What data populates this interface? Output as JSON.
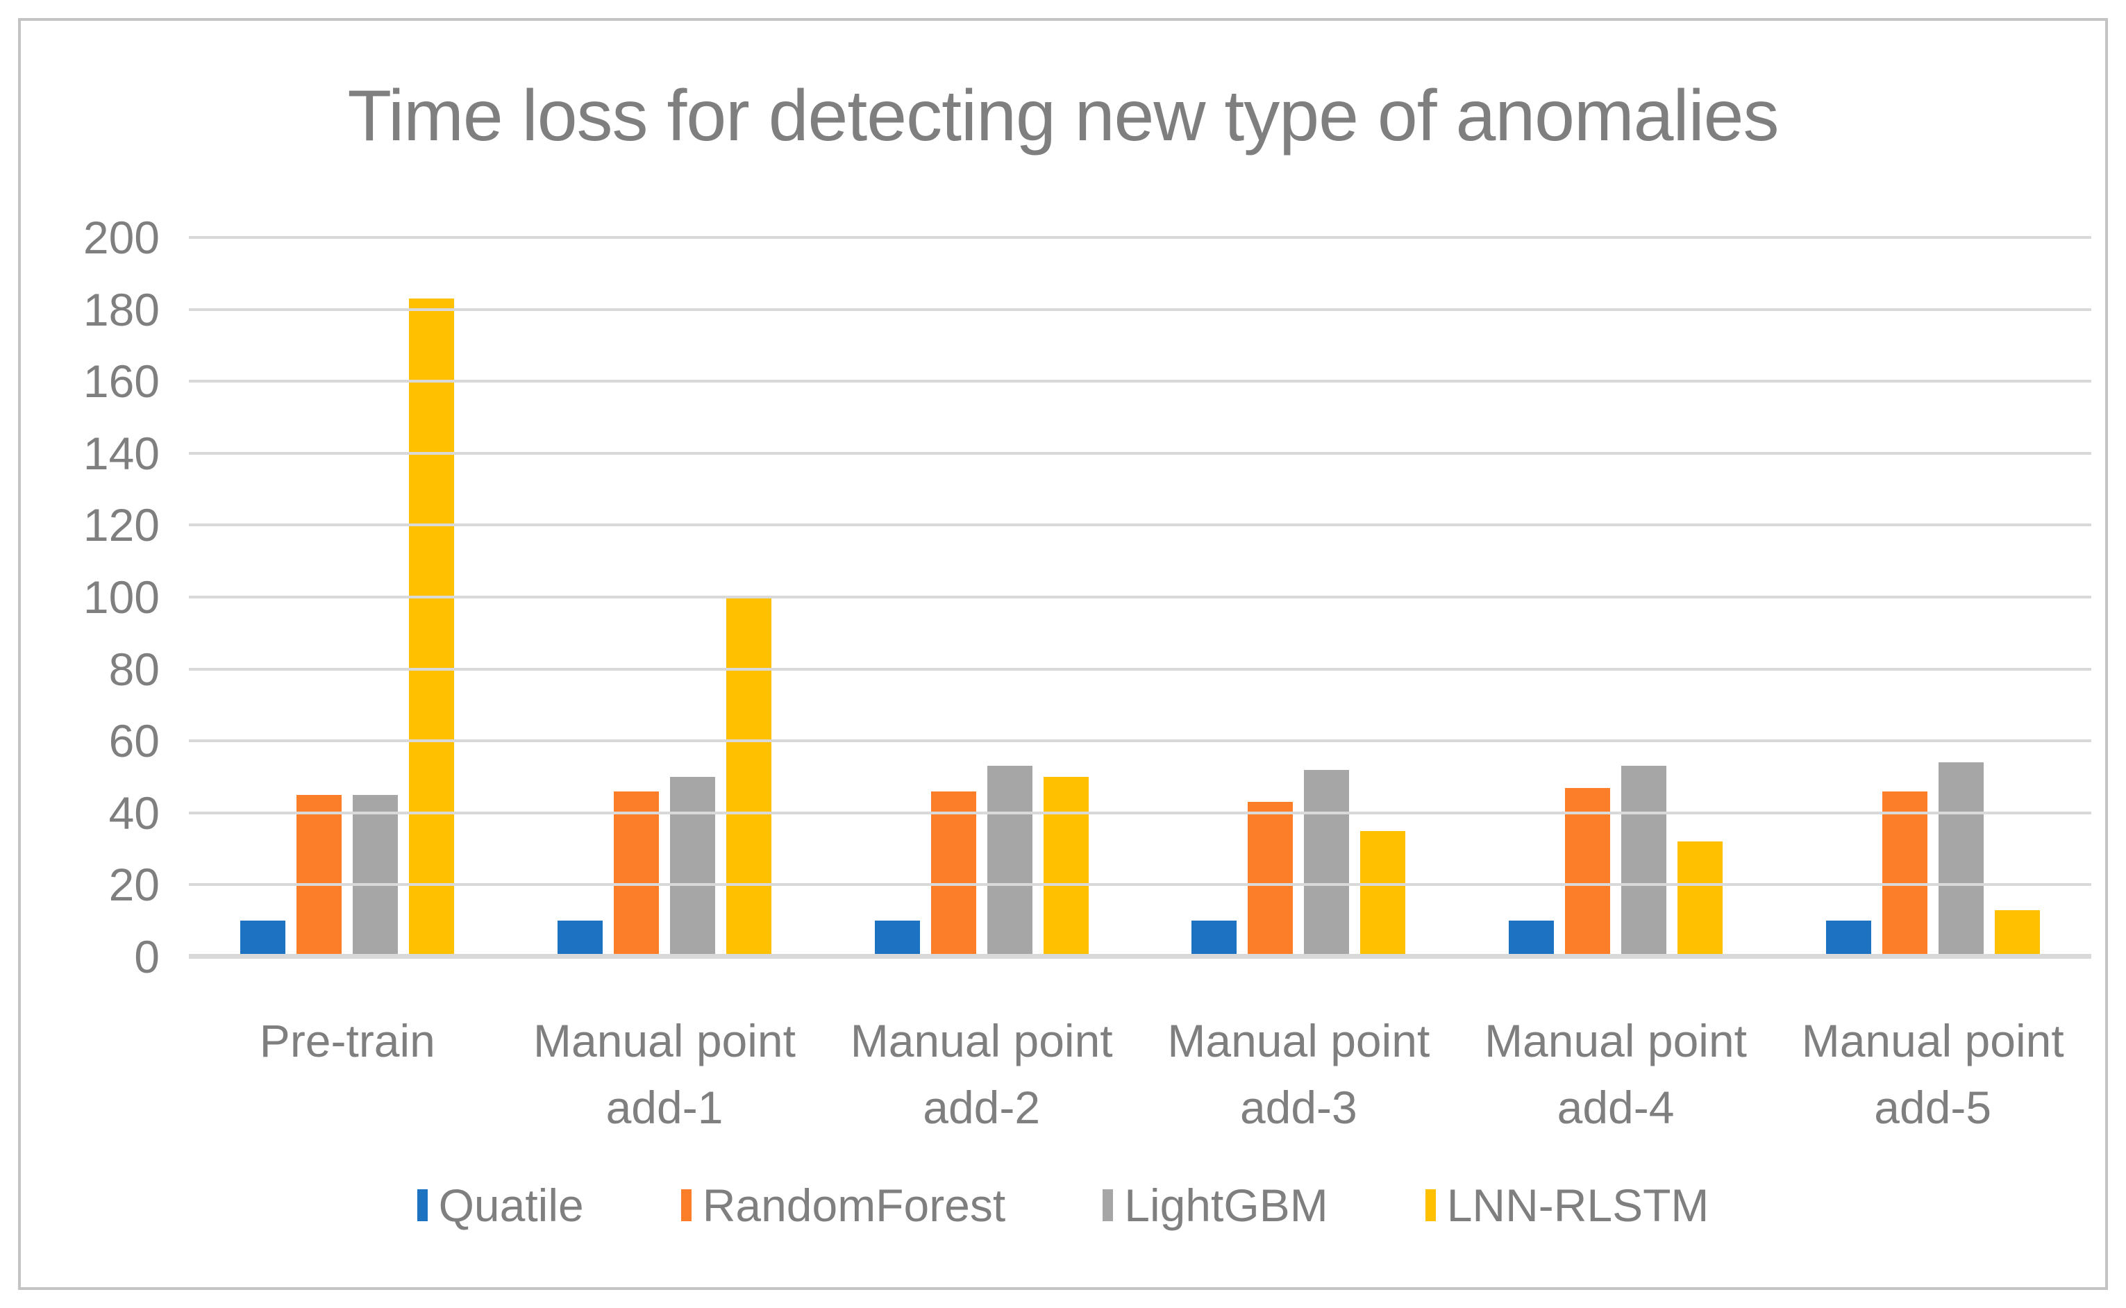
{
  "title": "Time loss for detecting new type of anomalies",
  "colors": {
    "text": "#7f7f7f",
    "gridline": "#d9d9d9",
    "border": "#c4c4c4",
    "background": "#ffffff",
    "series_blue": "#1d72c2",
    "series_orange": "#fd7e28",
    "series_gray": "#a6a6a6",
    "series_yellow": "#ffc000"
  },
  "chart_data": {
    "type": "bar",
    "title": "Time loss for detecting new type of anomalies",
    "xlabel": "",
    "ylabel": "",
    "ylim": [
      0,
      200
    ],
    "y_step": 20,
    "grid": true,
    "legend_position": "bottom",
    "y_tick_labels_top_down": [
      "200",
      "180",
      "160",
      "140",
      "120",
      "100",
      "80",
      "60",
      "40",
      "20",
      "0"
    ],
    "categories": [
      "Pre-train",
      "Manual point add-1",
      "Manual point add-2",
      "Manual point add-3",
      "Manual point add-4",
      "Manual point add-5"
    ],
    "category_lines": [
      [
        "Pre-train"
      ],
      [
        "Manual point",
        "add-1"
      ],
      [
        "Manual point",
        "add-2"
      ],
      [
        "Manual point",
        "add-3"
      ],
      [
        "Manual point",
        "add-4"
      ],
      [
        "Manual point",
        "add-5"
      ]
    ],
    "series": [
      {
        "name": "Quatile",
        "color": "#1d72c2",
        "values": [
          10,
          10,
          10,
          10,
          10,
          10
        ]
      },
      {
        "name": "RandomForest",
        "color": "#fd7e28",
        "values": [
          45,
          46,
          46,
          43,
          47,
          46
        ]
      },
      {
        "name": "LightGBM",
        "color": "#a6a6a6",
        "values": [
          45,
          50,
          53,
          52,
          53,
          54
        ]
      },
      {
        "name": "LNN-RLSTM",
        "color": "#ffc000",
        "values": [
          183,
          100,
          50,
          35,
          32,
          13
        ]
      }
    ]
  }
}
